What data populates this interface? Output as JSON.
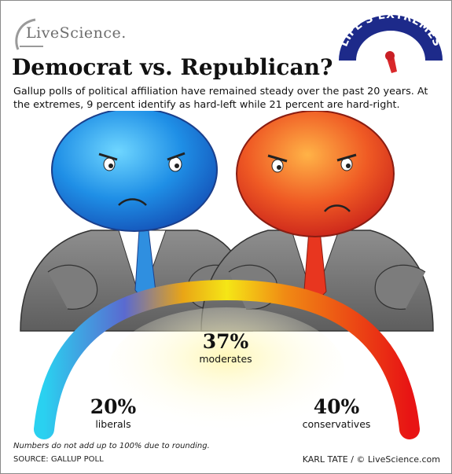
{
  "header": {
    "logo_text": "LiveScience.",
    "badge_text": "LIFE'S EXTREMES"
  },
  "title": "Democrat vs. Republican?",
  "intro": "Gallup polls of political affiliation have remained steady over the past 20 years. At the extremes, 9 percent identify as hard-left while 21 percent are hard-right.",
  "stats": {
    "moderates": {
      "pct": "37%",
      "label": "moderates"
    },
    "liberals": {
      "pct": "20%",
      "label": "liberals"
    },
    "conservatives": {
      "pct": "40%",
      "label": "conservatives"
    }
  },
  "footer": {
    "note": "Numbers do not add up to 100% due to rounding.",
    "source": "SOURCE: GALLUP POLL",
    "credit": "KARL TATE / © LiveScience.com"
  },
  "colors": {
    "democrat": "#1e88e5",
    "republican": "#e8472a",
    "arc_left": "#2ad1f0",
    "arc_mid": "#f5e616",
    "arc_right": "#e81414",
    "badge_blue": "#1d2a8a"
  }
}
